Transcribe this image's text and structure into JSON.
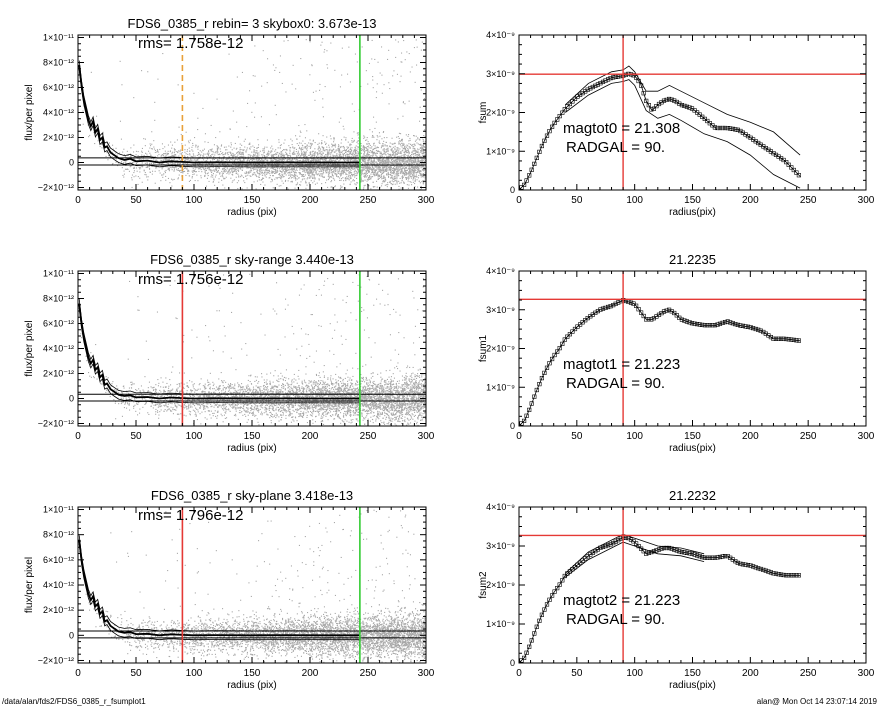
{
  "footer": {
    "path": "/data/alan/fds2/FDS6_0385_r_fsumplot1",
    "user_time": "alan@  Mon Oct 14 23:07:14 2019"
  },
  "colors": {
    "scatter": "#a8a8a8",
    "profile": "#000000",
    "marker_orange": "#e8a13a",
    "marker_red": "#e53935",
    "marker_green": "#33cc33",
    "crosshair": "#e53935"
  },
  "chart_data": [
    {
      "type": "scatter",
      "panel": "left-1",
      "title": "FDS6_0385_r rebin= 3    skybox0:  3.673e-13",
      "annotation": "rms= 1.758e-12",
      "xlabel": "radius (pix)",
      "ylabel": "flux/per pixel",
      "xlim": [
        0,
        300
      ],
      "ylim": [
        -2.2e-12,
        1.02e-11
      ],
      "xticks": [
        "0",
        "50",
        "100",
        "150",
        "200",
        "250",
        "300"
      ],
      "yticks": [
        {
          "value": 1e-11,
          "label": "1×10⁻¹¹"
        },
        {
          "value": 8e-12,
          "label": "8×10⁻¹²"
        },
        {
          "value": 6e-12,
          "label": "6×10⁻¹²"
        },
        {
          "value": 4e-12,
          "label": "4×10⁻¹²"
        },
        {
          "value": 2e-12,
          "label": "2×10⁻¹²"
        },
        {
          "value": 0,
          "label": "0"
        },
        {
          "value": -2e-12,
          "label": "−2×10⁻¹²"
        }
      ],
      "hlines": [
        3.67e-13,
        -2e-13
      ],
      "vlines": [
        {
          "x": 90,
          "color": "#e8a13a",
          "style": "dashed"
        },
        {
          "x": 243,
          "color": "#33cc33",
          "style": "solid"
        }
      ],
      "profile": {
        "x": [
          1,
          3,
          5,
          7,
          9,
          11,
          13,
          15,
          17,
          19,
          21,
          23,
          25,
          28,
          31,
          35,
          40,
          45,
          50,
          60,
          70,
          80,
          90,
          100,
          120,
          150,
          180,
          210,
          243
        ],
        "y": [
          7.8e-12,
          6.2e-12,
          5e-12,
          4.2e-12,
          3.4e-12,
          2.9e-12,
          3.3e-12,
          2.4e-12,
          2.7e-12,
          1.8e-12,
          2e-12,
          1.2e-12,
          1.3e-12,
          8e-13,
          6e-13,
          3.5e-13,
          2e-13,
          3e-13,
          1e-13,
          1.5e-13,
          0.0,
          1e-13,
          5e-14,
          0.0,
          2e-14,
          0.0,
          1e-14,
          0.0,
          0.0
        ]
      }
    },
    {
      "type": "line",
      "panel": "right-1",
      "title": "",
      "xlabel": "radius(pix)",
      "ylabel": "fsum",
      "xlim": [
        0,
        300
      ],
      "ylim": [
        0,
        4e-09
      ],
      "xticks": [
        "0",
        "50",
        "100",
        "150",
        "200",
        "250",
        "300"
      ],
      "yticks": [
        {
          "value": 4e-09,
          "label": "4×10⁻⁹"
        },
        {
          "value": 3e-09,
          "label": "3×10⁻⁹"
        },
        {
          "value": 2e-09,
          "label": "2×10⁻⁹"
        },
        {
          "value": 1e-09,
          "label": "1×10⁻⁹"
        },
        {
          "value": 0,
          "label": "0"
        }
      ],
      "crosshair": {
        "x": 90,
        "y": 2.99e-09
      },
      "text": [
        "magtot0 =  21.308",
        "RADGAL =     90."
      ],
      "series": {
        "x": [
          0,
          5,
          10,
          15,
          20,
          25,
          30,
          35,
          40,
          50,
          60,
          70,
          80,
          90,
          95,
          100,
          105,
          110,
          115,
          120,
          125,
          130,
          135,
          140,
          150,
          160,
          170,
          180,
          190,
          200,
          210,
          220,
          230,
          243
        ],
        "y": [
          0.0,
          1.5e-10,
          4.5e-10,
          8e-10,
          1.15e-09,
          1.45e-09,
          1.7e-09,
          1.9e-09,
          2.1e-09,
          2.4e-09,
          2.6e-09,
          2.75e-09,
          2.9e-09,
          2.95e-09,
          3e-09,
          2.95e-09,
          2.75e-09,
          2.3e-09,
          2.05e-09,
          2.2e-09,
          2.3e-09,
          2.35e-09,
          2.3e-09,
          2.2e-09,
          2.1e-09,
          1.85e-09,
          1.6e-09,
          1.6e-09,
          1.55e-09,
          1.35e-09,
          1.15e-09,
          9.5e-10,
          7.5e-10,
          3.5e-10
        ]
      },
      "upper": {
        "x": [
          40,
          60,
          80,
          90,
          95,
          100,
          110,
          120,
          130,
          140,
          160,
          180,
          200,
          220,
          243
        ],
        "y": [
          2.2e-09,
          2.75e-09,
          3.05e-09,
          3.1e-09,
          3.2e-09,
          3.05e-09,
          2.55e-09,
          2.55e-09,
          2.7e-09,
          2.55e-09,
          2.25e-09,
          1.95e-09,
          1.75e-09,
          1.5e-09,
          9e-10
        ]
      },
      "lower": {
        "x": [
          40,
          60,
          80,
          90,
          95,
          100,
          110,
          120,
          130,
          140,
          160,
          180,
          200,
          220,
          243
        ],
        "y": [
          2e-09,
          2.45e-09,
          2.75e-09,
          2.8e-09,
          2.85e-09,
          2.7e-09,
          2.05e-09,
          1.85e-09,
          1.95e-09,
          1.8e-09,
          1.45e-09,
          1.25e-09,
          9e-10,
          4e-10,
          5e-11
        ]
      }
    },
    {
      "type": "scatter",
      "panel": "left-2",
      "title": "FDS6_0385_r sky-range  3.440e-13",
      "annotation": "rms= 1.756e-12",
      "xlabel": "radius (pix)",
      "ylabel": "flux/per pixel",
      "xlim": [
        0,
        300
      ],
      "ylim": [
        -2.2e-12,
        1.02e-11
      ],
      "xticks": [
        "0",
        "50",
        "100",
        "150",
        "200",
        "250",
        "300"
      ],
      "yticks": [
        {
          "value": 1e-11,
          "label": "1×10⁻¹¹"
        },
        {
          "value": 8e-12,
          "label": "8×10⁻¹²"
        },
        {
          "value": 6e-12,
          "label": "6×10⁻¹²"
        },
        {
          "value": 4e-12,
          "label": "4×10⁻¹²"
        },
        {
          "value": 2e-12,
          "label": "2×10⁻¹²"
        },
        {
          "value": 0,
          "label": "0"
        },
        {
          "value": -2e-12,
          "label": "−2×10⁻¹²"
        }
      ],
      "hlines": [
        3.44e-13,
        -2e-13
      ],
      "vlines": [
        {
          "x": 90,
          "color": "#e53935",
          "style": "solid"
        },
        {
          "x": 243,
          "color": "#33cc33",
          "style": "solid"
        }
      ],
      "profile": {
        "x": [
          1,
          3,
          5,
          7,
          9,
          11,
          13,
          15,
          17,
          19,
          21,
          23,
          25,
          28,
          31,
          35,
          40,
          45,
          50,
          60,
          70,
          80,
          90,
          100,
          120,
          150,
          180,
          210,
          243
        ],
        "y": [
          7.6e-12,
          6e-12,
          4.9e-12,
          4.1e-12,
          3.3e-12,
          2.8e-12,
          3.1e-12,
          2.3e-12,
          2.5e-12,
          1.7e-12,
          1.9e-12,
          1.1e-12,
          1.2e-12,
          7.5e-13,
          5.5e-13,
          3e-13,
          2e-13,
          2.5e-13,
          1e-13,
          1.2e-13,
          0.0,
          8e-14,
          3e-14,
          0.0,
          2e-14,
          0.0,
          1e-14,
          0.0,
          0.0
        ]
      }
    },
    {
      "type": "line",
      "panel": "right-2",
      "title": "21.2235",
      "xlabel": "radius(pix)",
      "ylabel": "fsum1",
      "xlim": [
        0,
        300
      ],
      "ylim": [
        0,
        4e-09
      ],
      "xticks": [
        "0",
        "50",
        "100",
        "150",
        "200",
        "250",
        "300"
      ],
      "yticks": [
        {
          "value": 4e-09,
          "label": "4×10⁻⁹"
        },
        {
          "value": 3e-09,
          "label": "3×10⁻⁹"
        },
        {
          "value": 2e-09,
          "label": "2×10⁻⁹"
        },
        {
          "value": 1e-09,
          "label": "1×10⁻⁹"
        },
        {
          "value": 0,
          "label": "0"
        }
      ],
      "crosshair": {
        "x": 90,
        "y": 3.27e-09
      },
      "text": [
        "magtot1 =  21.223",
        "RADGAL =     90."
      ],
      "series": {
        "x": [
          0,
          5,
          10,
          15,
          20,
          25,
          30,
          35,
          40,
          50,
          60,
          70,
          80,
          90,
          95,
          100,
          105,
          110,
          115,
          120,
          125,
          130,
          135,
          140,
          150,
          160,
          170,
          180,
          190,
          200,
          210,
          220,
          230,
          243
        ],
        "y": [
          0.0,
          1.5e-10,
          5e-10,
          9e-10,
          1.25e-09,
          1.55e-09,
          1.8e-09,
          2e-09,
          2.25e-09,
          2.55e-09,
          2.8e-09,
          3e-09,
          3.1e-09,
          3.25e-09,
          3.2e-09,
          3.15e-09,
          2.95e-09,
          2.75e-09,
          2.75e-09,
          2.85e-09,
          2.95e-09,
          3e-09,
          2.9e-09,
          2.75e-09,
          2.65e-09,
          2.6e-09,
          2.6e-09,
          2.7e-09,
          2.6e-09,
          2.55e-09,
          2.45e-09,
          2.25e-09,
          2.25e-09,
          2.2e-09
        ]
      }
    },
    {
      "type": "scatter",
      "panel": "left-3",
      "title": "FDS6_0385_r sky-plane  3.418e-13",
      "annotation": "rms= 1.796e-12",
      "xlabel": "radius (pix)",
      "ylabel": "flux/per pixel",
      "xlim": [
        0,
        300
      ],
      "ylim": [
        -2.2e-12,
        1.02e-11
      ],
      "xticks": [
        "0",
        "50",
        "100",
        "150",
        "200",
        "250",
        "300"
      ],
      "yticks": [
        {
          "value": 1e-11,
          "label": "1×10⁻¹¹"
        },
        {
          "value": 8e-12,
          "label": "8×10⁻¹²"
        },
        {
          "value": 6e-12,
          "label": "6×10⁻¹²"
        },
        {
          "value": 4e-12,
          "label": "4×10⁻¹²"
        },
        {
          "value": 2e-12,
          "label": "2×10⁻¹²"
        },
        {
          "value": 0,
          "label": "0"
        },
        {
          "value": -2e-12,
          "label": "−2×10⁻¹²"
        }
      ],
      "hlines": [
        3.42e-13,
        -2e-13
      ],
      "vlines": [
        {
          "x": 90,
          "color": "#e53935",
          "style": "solid"
        },
        {
          "x": 243,
          "color": "#33cc33",
          "style": "solid"
        }
      ],
      "profile": {
        "x": [
          1,
          3,
          5,
          7,
          9,
          11,
          13,
          15,
          17,
          19,
          21,
          23,
          25,
          28,
          31,
          35,
          40,
          45,
          50,
          60,
          70,
          80,
          90,
          100,
          120,
          150,
          180,
          210,
          243
        ],
        "y": [
          7.6e-12,
          6e-12,
          4.9e-12,
          4.1e-12,
          3.3e-12,
          2.8e-12,
          3.1e-12,
          2.3e-12,
          2.5e-12,
          1.7e-12,
          1.9e-12,
          1.1e-12,
          1.2e-12,
          7.5e-13,
          5.5e-13,
          3e-13,
          2e-13,
          2.5e-13,
          1e-13,
          1.2e-13,
          0.0,
          8e-14,
          3e-14,
          0.0,
          2e-14,
          0.0,
          1e-14,
          0.0,
          0.0
        ]
      }
    },
    {
      "type": "line",
      "panel": "right-3",
      "title": "21.2232",
      "xlabel": "radius(pix)",
      "ylabel": "fsum2",
      "xlim": [
        0,
        300
      ],
      "ylim": [
        0,
        4e-09
      ],
      "xticks": [
        "0",
        "50",
        "100",
        "150",
        "200",
        "250",
        "300"
      ],
      "yticks": [
        {
          "value": 4e-09,
          "label": "4×10⁻⁹"
        },
        {
          "value": 3e-09,
          "label": "3×10⁻⁹"
        },
        {
          "value": 2e-09,
          "label": "2×10⁻⁹"
        },
        {
          "value": 1e-09,
          "label": "1×10⁻⁹"
        },
        {
          "value": 0,
          "label": "0"
        }
      ],
      "crosshair": {
        "x": 90,
        "y": 3.27e-09
      },
      "text": [
        "magtot2 =  21.223",
        "RADGAL =     90."
      ],
      "series": {
        "x": [
          0,
          5,
          10,
          15,
          20,
          25,
          30,
          35,
          40,
          50,
          60,
          70,
          80,
          90,
          95,
          100,
          105,
          110,
          115,
          120,
          125,
          130,
          135,
          140,
          150,
          160,
          170,
          180,
          190,
          200,
          210,
          220,
          230,
          243
        ],
        "y": [
          0.0,
          1.5e-10,
          5e-10,
          9e-10,
          1.25e-09,
          1.55e-09,
          1.8e-09,
          2e-09,
          2.25e-09,
          2.5e-09,
          2.75e-09,
          2.95e-09,
          3.05e-09,
          3.22e-09,
          3.2e-09,
          3.1e-09,
          2.95e-09,
          2.8e-09,
          2.85e-09,
          2.9e-09,
          2.95e-09,
          2.95e-09,
          2.9e-09,
          2.85e-09,
          2.8e-09,
          2.7e-09,
          2.7e-09,
          2.75e-09,
          2.55e-09,
          2.5e-09,
          2.4e-09,
          2.3e-09,
          2.25e-09,
          2.25e-09
        ]
      },
      "upper": {
        "x": [
          40,
          60,
          80,
          90,
          100,
          120,
          140,
          160
        ],
        "y": [
          2.3e-09,
          2.85e-09,
          3.15e-09,
          3.3e-09,
          3.2e-09,
          3e-09,
          2.95e-09,
          2.8e-09
        ]
      },
      "lower": {
        "x": [
          40,
          60,
          80,
          90,
          100,
          120,
          140,
          160
        ],
        "y": [
          2.2e-09,
          2.65e-09,
          2.95e-09,
          3.1e-09,
          3e-09,
          2.8e-09,
          2.75e-09,
          2.6e-09
        ]
      }
    }
  ]
}
